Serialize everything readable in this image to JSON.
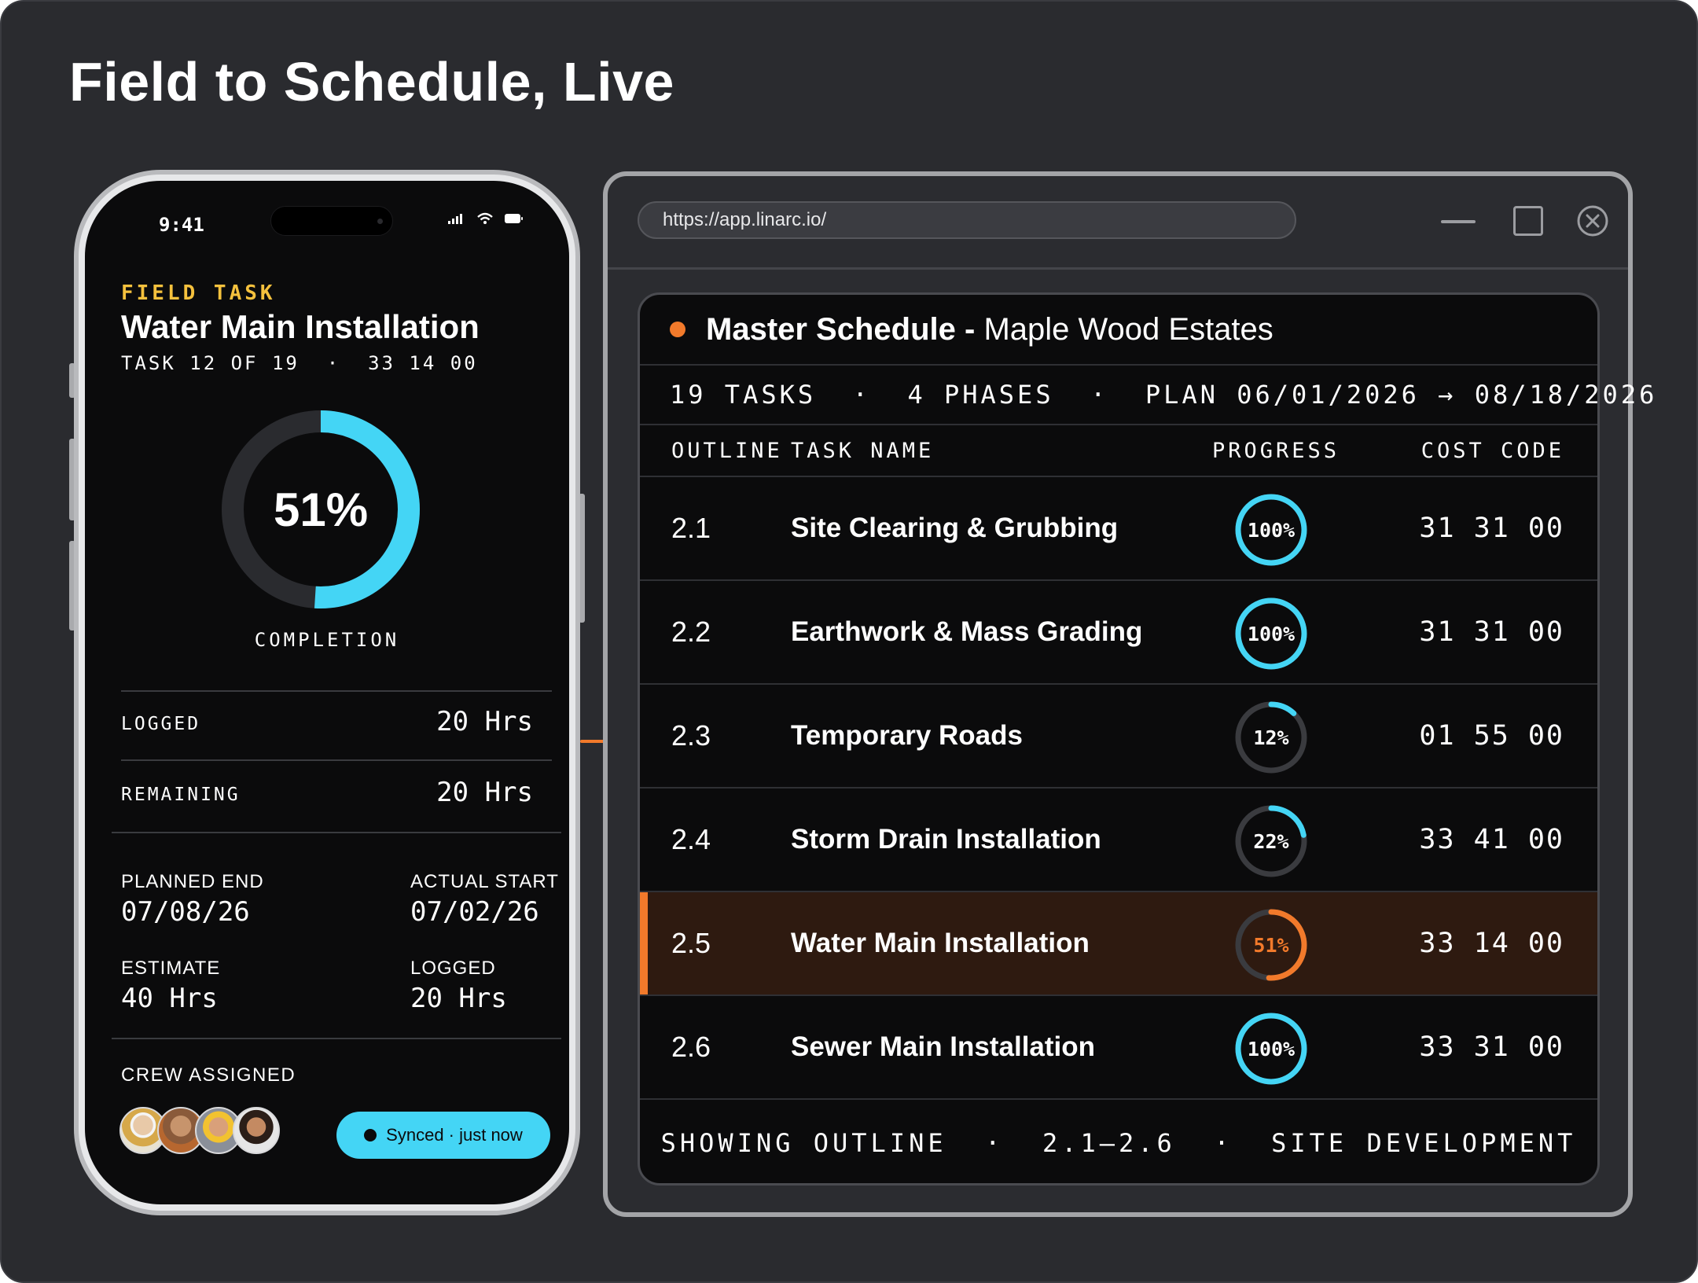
{
  "page": {
    "title": "Field to Schedule, Live"
  },
  "phone": {
    "status_time": "9:41",
    "label": "FIELD TASK",
    "task_title": "Water Main Installation",
    "task_meta": "TASK 12 OF 19  ·  33 14 00",
    "completion": {
      "value": 51,
      "text": "51%",
      "label": "COMPLETION"
    },
    "logged": {
      "label": "LOGGED",
      "value": "20 Hrs"
    },
    "remaining": {
      "label": "REMAINING",
      "value": "20 Hrs"
    },
    "planned_end": {
      "label": "PLANNED END",
      "value": "07/08/26"
    },
    "actual_start": {
      "label": "ACTUAL START",
      "value": "07/02/26"
    },
    "estimate": {
      "label": "ESTIMATE",
      "value": "40 Hrs"
    },
    "logged2": {
      "label": "LOGGED",
      "value": "20 Hrs"
    },
    "crew_label": "CREW ASSIGNED",
    "synced": "Synced · just now"
  },
  "browser": {
    "url": "https://app.linarc.io/",
    "schedule": {
      "title_bold": "Master Schedule -",
      "title_rest": " Maple Wood Estates",
      "summary": "19 TASKS  ·  4 PHASES  ·  PLAN 06/01/2026 → 08/18/2026",
      "columns": {
        "outline": "OUTLINE",
        "name": "TASK NAME",
        "progress": "PROGRESS",
        "cost": "COST CODE"
      },
      "rows": [
        {
          "outline": "2.1",
          "name": "Site Clearing & Grubbing",
          "progress": 100,
          "progress_text": "100%",
          "cost": "31 31 00"
        },
        {
          "outline": "2.2",
          "name": "Earthwork & Mass Grading",
          "progress": 100,
          "progress_text": "100%",
          "cost": "31 31 00"
        },
        {
          "outline": "2.3",
          "name": "Temporary Roads",
          "progress": 12,
          "progress_text": "12%",
          "cost": "01 55 00"
        },
        {
          "outline": "2.4",
          "name": "Storm Drain Installation",
          "progress": 22,
          "progress_text": "22%",
          "cost": "33 41 00"
        },
        {
          "outline": "2.5",
          "name": "Water Main Installation",
          "progress": 51,
          "progress_text": "51%",
          "cost": "33 14 00",
          "active": true
        },
        {
          "outline": "2.6",
          "name": "Sewer Main Installation",
          "progress": 100,
          "progress_text": "100%",
          "cost": "33 31 00"
        }
      ],
      "footer": "SHOWING OUTLINE  ·  2.1–2.6  ·  SITE DEVELOPMENT"
    }
  },
  "colors": {
    "accent_cyan": "#44d5f5",
    "accent_orange": "#f27a2b",
    "label_yellow": "#f5c13d"
  }
}
